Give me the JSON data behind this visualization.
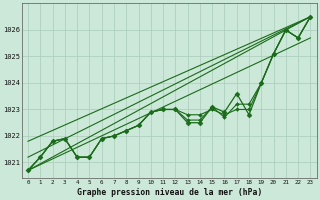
{
  "xlabel": "Graphe pression niveau de la mer (hPa)",
  "xlim": [
    -0.5,
    23.5
  ],
  "ylim": [
    1020.4,
    1027.0
  ],
  "yticks": [
    1021,
    1022,
    1023,
    1024,
    1025,
    1026
  ],
  "xticks": [
    0,
    1,
    2,
    3,
    4,
    5,
    6,
    7,
    8,
    9,
    10,
    11,
    12,
    13,
    14,
    15,
    16,
    17,
    18,
    19,
    20,
    21,
    22,
    23
  ],
  "bg_color": "#cce8d8",
  "grid_color": "#aaccbb",
  "line_color": "#1a6b1a",
  "straight_lines": [
    [
      1020.7,
      1026.5
    ],
    [
      1020.7,
      1025.7
    ],
    [
      1021.2,
      1026.5
    ],
    [
      1021.8,
      1026.5
    ]
  ],
  "main_series": [
    1020.7,
    1021.2,
    1021.8,
    1021.9,
    1021.2,
    1021.2,
    1021.9,
    1022.0,
    1022.2,
    1022.4,
    1022.9,
    1023.0,
    1023.0,
    1022.5,
    1022.5,
    1023.1,
    1022.9,
    1023.6,
    1022.8,
    1024.0,
    1025.1,
    1026.0,
    1025.7,
    1026.5
  ],
  "extra_series": [
    [
      1020.7,
      1021.2,
      1021.8,
      1021.9,
      1021.2,
      1021.2,
      1021.9,
      1022.0,
      1022.2,
      1022.4,
      1022.9,
      1023.0,
      1023.0,
      1022.8,
      1022.8,
      1023.0,
      1022.8,
      1023.0,
      1023.0,
      1024.0,
      1025.1,
      1026.0,
      1025.7,
      1026.5
    ],
    [
      1020.7,
      1021.2,
      1021.8,
      1021.9,
      1021.2,
      1021.2,
      1021.9,
      1022.0,
      1022.2,
      1022.4,
      1022.9,
      1023.0,
      1023.0,
      1022.6,
      1022.6,
      1023.1,
      1022.7,
      1023.2,
      1023.2,
      1024.0,
      1025.1,
      1026.0,
      1025.7,
      1026.5
    ]
  ],
  "hours": [
    0,
    1,
    2,
    3,
    4,
    5,
    6,
    7,
    8,
    9,
    10,
    11,
    12,
    13,
    14,
    15,
    16,
    17,
    18,
    19,
    20,
    21,
    22,
    23
  ]
}
